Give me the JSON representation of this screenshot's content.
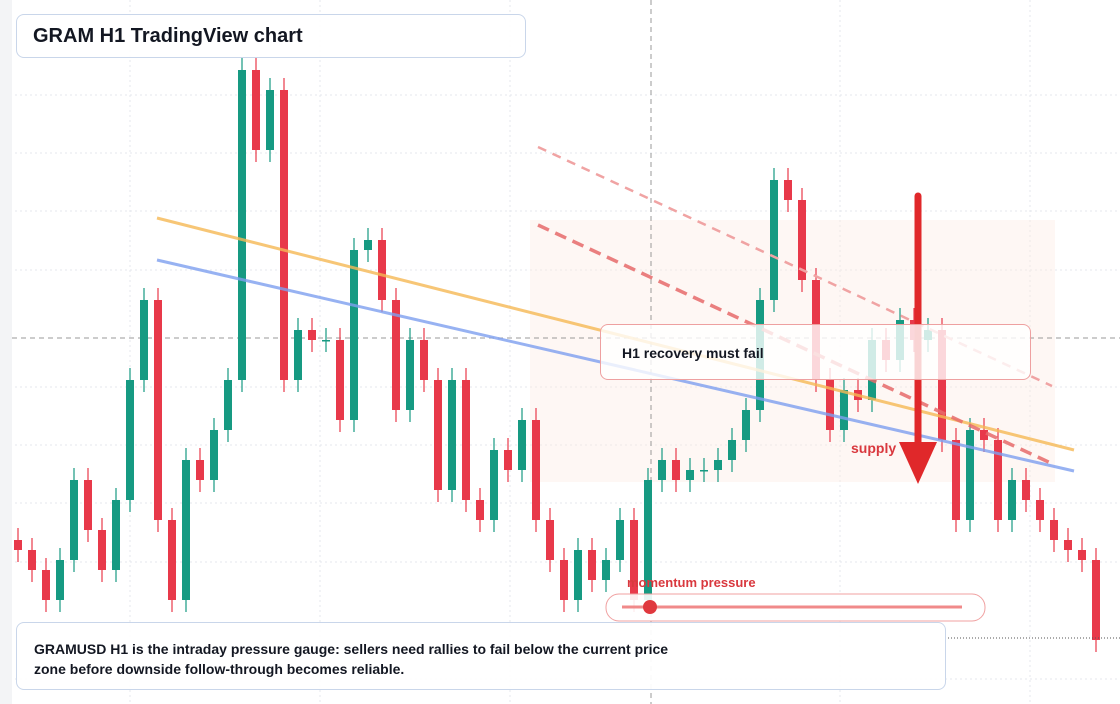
{
  "chart_data": {
    "type": "candlestick",
    "title": "GRAM H1 TradingView chart",
    "callout": "H1 recovery must fail",
    "zone_label": "supply",
    "gauge_label": "momentum pressure",
    "description": "GRAMUSD H1 is the intraday pressure gauge: sellers need rallies to fail below the current price zone before downside follow-through becomes reliable.",
    "up_color": "#169a82",
    "down_color": "#e8394a",
    "ylim": [
      0,
      704
    ],
    "open": [
      164,
      154,
      134,
      104,
      144,
      224,
      174,
      134,
      204,
      324,
      404,
      184,
      104,
      244,
      224,
      274,
      324,
      634,
      554,
      614,
      324,
      374,
      364,
      364,
      284,
      454,
      464,
      404,
      294,
      364,
      324,
      214,
      324,
      204,
      184,
      254,
      234,
      284,
      184,
      144,
      104,
      154,
      124,
      144,
      184,
      104,
      224,
      244,
      224,
      234,
      234,
      244,
      264,
      294,
      404,
      524,
      504,
      424,
      324,
      274,
      314,
      304,
      364,
      344,
      384,
      364,
      374,
      264,
      184,
      274,
      264,
      184,
      224,
      204,
      184,
      164,
      154,
      144
    ],
    "high": [
      176,
      166,
      146,
      156,
      236,
      236,
      186,
      216,
      336,
      416,
      416,
      196,
      256,
      256,
      286,
      336,
      646,
      646,
      626,
      626,
      386,
      386,
      376,
      376,
      466,
      476,
      476,
      416,
      376,
      376,
      336,
      336,
      336,
      216,
      266,
      266,
      296,
      296,
      196,
      156,
      166,
      166,
      156,
      196,
      196,
      236,
      256,
      256,
      246,
      246,
      256,
      276,
      306,
      416,
      536,
      536,
      516,
      436,
      336,
      326,
      326,
      376,
      376,
      396,
      396,
      386,
      386,
      276,
      286,
      286,
      276,
      236,
      236,
      216,
      196,
      176,
      166,
      156
    ],
    "low": [
      142,
      122,
      92,
      92,
      132,
      162,
      122,
      122,
      192,
      312,
      172,
      92,
      92,
      212,
      212,
      262,
      312,
      542,
      542,
      312,
      312,
      352,
      352,
      272,
      272,
      442,
      392,
      282,
      282,
      312,
      202,
      202,
      192,
      172,
      172,
      222,
      222,
      172,
      132,
      92,
      92,
      112,
      112,
      132,
      92,
      92,
      212,
      212,
      212,
      222,
      222,
      232,
      252,
      282,
      392,
      492,
      412,
      312,
      262,
      262,
      292,
      292,
      332,
      332,
      352,
      352,
      252,
      172,
      172,
      252,
      172,
      172,
      192,
      172,
      152,
      142,
      132,
      52
    ],
    "close": [
      154,
      134,
      104,
      144,
      224,
      174,
      134,
      204,
      324,
      404,
      184,
      104,
      244,
      224,
      274,
      324,
      634,
      554,
      614,
      324,
      374,
      364,
      364,
      284,
      454,
      464,
      404,
      294,
      364,
      324,
      214,
      324,
      204,
      184,
      254,
      234,
      284,
      184,
      144,
      104,
      154,
      124,
      144,
      184,
      104,
      224,
      244,
      224,
      234,
      234,
      244,
      264,
      294,
      404,
      524,
      504,
      424,
      324,
      274,
      314,
      304,
      364,
      344,
      384,
      364,
      374,
      264,
      184,
      274,
      264,
      184,
      224,
      204,
      184,
      164,
      154,
      144,
      64
    ]
  }
}
